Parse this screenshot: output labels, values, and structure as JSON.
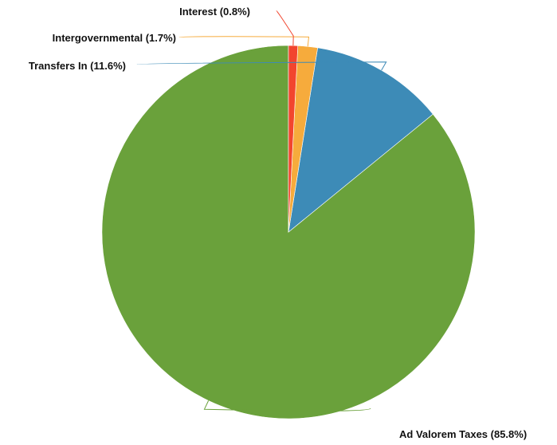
{
  "chart_data": {
    "type": "pie",
    "title": "",
    "slices": [
      {
        "label": "Ad Valorem Taxes (85.8%)",
        "category": "Ad Valorem Taxes",
        "value": 85.8,
        "color": "#6aa13b"
      },
      {
        "label": "Transfers In (11.6%)",
        "category": "Transfers In",
        "value": 11.6,
        "color": "#3d8bb7"
      },
      {
        "label": "Intergovernmental (1.7%)",
        "category": "Intergovernmental",
        "value": 1.7,
        "color": "#f6ab3c"
      },
      {
        "label": "Interest (0.8%)",
        "category": "Interest",
        "value": 0.8,
        "color": "#f2452e"
      }
    ],
    "start_angle_deg": 0,
    "direction": "clockwise",
    "legend": "none"
  }
}
